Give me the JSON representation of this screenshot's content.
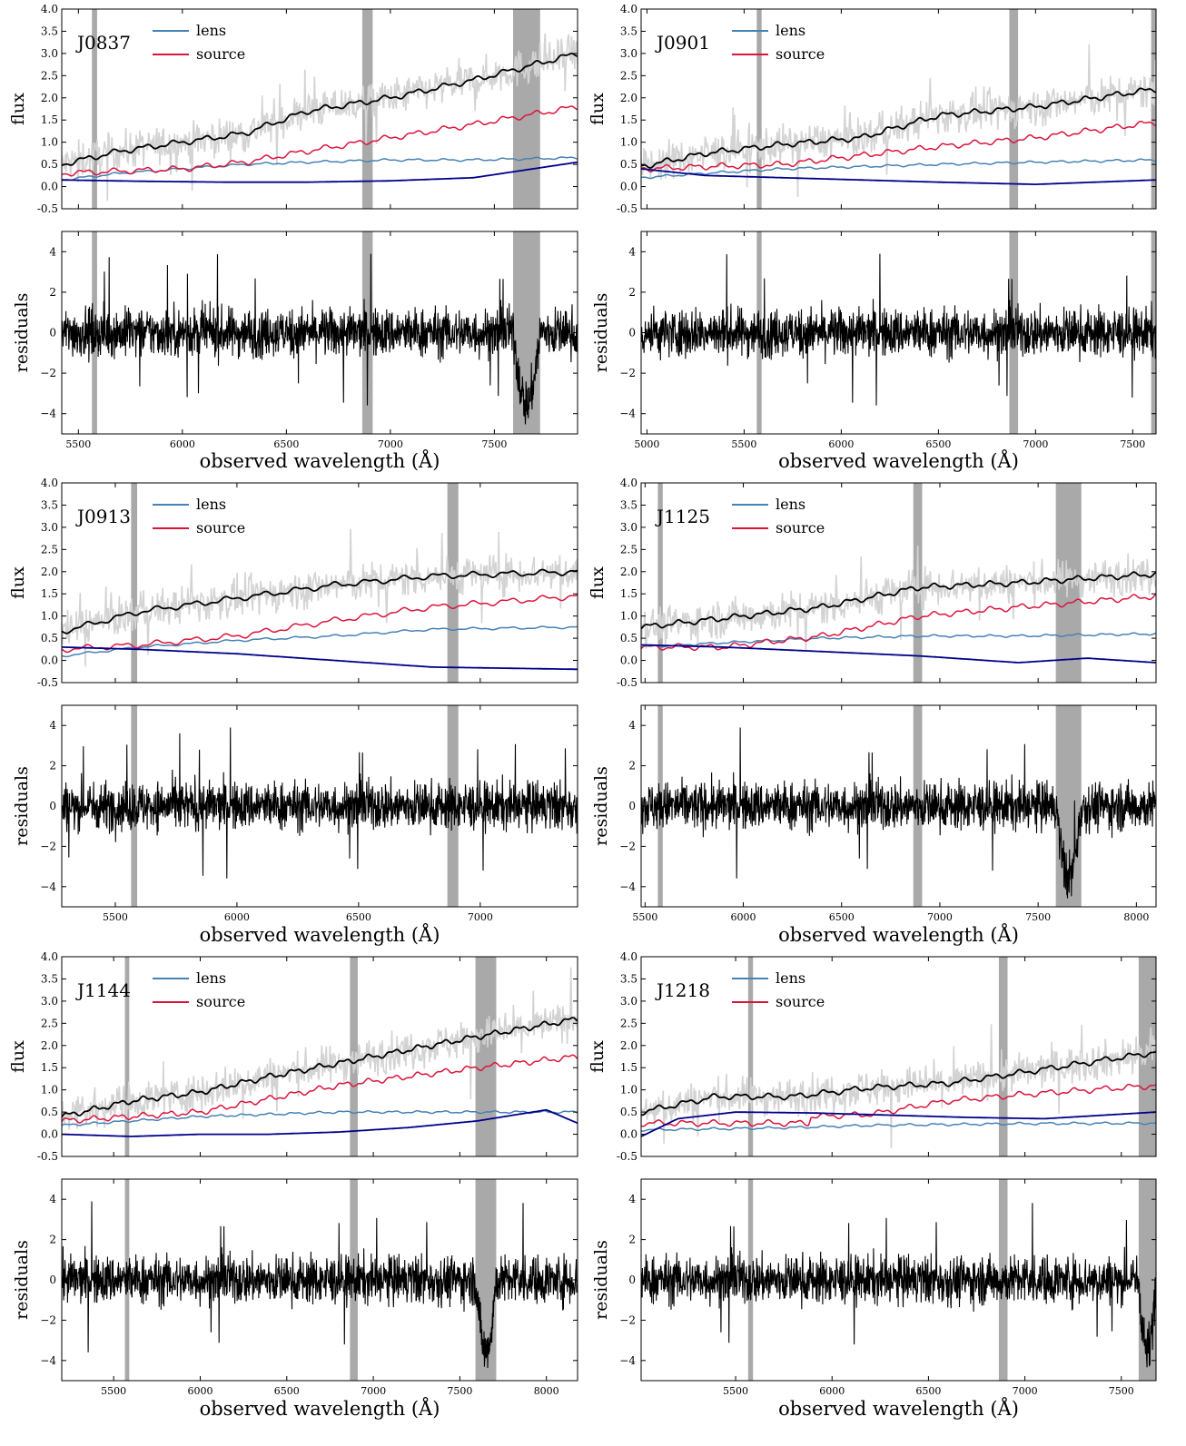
{
  "figure": {
    "x_label": "observed wavelength (Å)",
    "flux_label": "flux",
    "residuals_label": "residuals",
    "legend": {
      "lens": "lens",
      "source": "source"
    },
    "colors": {
      "data": "#d3d3d3",
      "model": "#000000",
      "lens": "#4682b4",
      "source": "#dc143c",
      "polynomial": "#00008b",
      "mask": "#a9a9a9",
      "residuals": "#000000"
    }
  },
  "chart_data": [
    {
      "type": "line",
      "name": "J0837",
      "xlim": [
        5420,
        7900
      ],
      "flux_ylim": [
        -0.5,
        4.0
      ],
      "flux_yticks": [
        -0.5,
        0.0,
        0.5,
        1.0,
        1.5,
        2.0,
        2.5,
        3.0,
        3.5,
        4.0
      ],
      "resid_ylim": [
        -5,
        5
      ],
      "resid_yticks": [
        -4,
        -2,
        0,
        2,
        4
      ],
      "xticks": [
        5500,
        6000,
        6500,
        7000,
        7500
      ],
      "masks": [
        [
          5565,
          5590
        ],
        [
          6865,
          6915
        ],
        [
          7590,
          7720
        ]
      ],
      "series": [
        {
          "name": "lens",
          "x": [
            5420,
            5700,
            6000,
            6300,
            6600,
            7000,
            7400,
            7900
          ],
          "y": [
            0.15,
            0.3,
            0.4,
            0.5,
            0.55,
            0.6,
            0.6,
            0.65
          ]
        },
        {
          "name": "source",
          "x": [
            5420,
            5700,
            6000,
            6300,
            6600,
            7000,
            7400,
            7900
          ],
          "y": [
            0.3,
            0.35,
            0.4,
            0.55,
            0.8,
            1.1,
            1.4,
            1.8
          ]
        },
        {
          "name": "model",
          "x": [
            5420,
            5700,
            6000,
            6300,
            6600,
            7000,
            7400,
            7900
          ],
          "y": [
            0.5,
            0.8,
            1.0,
            1.2,
            1.7,
            2.0,
            2.4,
            3.0
          ]
        },
        {
          "name": "polynomial",
          "x": [
            5420,
            5800,
            6200,
            6600,
            7000,
            7400,
            7900
          ],
          "y": [
            0.15,
            0.12,
            0.1,
            0.1,
            0.13,
            0.2,
            0.55
          ]
        }
      ]
    },
    {
      "type": "line",
      "name": "J0901",
      "xlim": [
        4970,
        7620
      ],
      "flux_ylim": [
        -0.5,
        4.0
      ],
      "flux_yticks": [
        -0.5,
        0.0,
        0.5,
        1.0,
        1.5,
        2.0,
        2.5,
        3.0,
        3.5,
        4.0
      ],
      "resid_ylim": [
        -5,
        5
      ],
      "resid_yticks": [
        -4,
        -2,
        0,
        2,
        4
      ],
      "xticks": [
        5000,
        5500,
        6000,
        6500,
        7000,
        7500
      ],
      "masks": [
        [
          5565,
          5590
        ],
        [
          6865,
          6910
        ],
        [
          7595,
          7620
        ]
      ],
      "series": [
        {
          "name": "lens",
          "x": [
            4970,
            5300,
            5700,
            6100,
            6500,
            7000,
            7620
          ],
          "y": [
            0.2,
            0.3,
            0.4,
            0.45,
            0.5,
            0.55,
            0.6
          ]
        },
        {
          "name": "source",
          "x": [
            4970,
            5300,
            5700,
            6100,
            6500,
            7000,
            7620
          ],
          "y": [
            0.4,
            0.45,
            0.5,
            0.7,
            0.9,
            1.1,
            1.45
          ]
        },
        {
          "name": "model",
          "x": [
            4970,
            5300,
            5700,
            6100,
            6500,
            7000,
            7620
          ],
          "y": [
            0.45,
            0.75,
            0.95,
            1.1,
            1.6,
            1.8,
            2.2
          ]
        },
        {
          "name": "polynomial",
          "x": [
            4970,
            5300,
            5700,
            6100,
            6500,
            7000,
            7620
          ],
          "y": [
            0.4,
            0.25,
            0.2,
            0.15,
            0.1,
            0.05,
            0.15
          ]
        }
      ]
    },
    {
      "type": "line",
      "name": "J0913",
      "xlim": [
        5280,
        7400
      ],
      "flux_ylim": [
        -0.5,
        4.0
      ],
      "flux_yticks": [
        -0.5,
        0.0,
        0.5,
        1.0,
        1.5,
        2.0,
        2.5,
        3.0,
        3.5,
        4.0
      ],
      "resid_ylim": [
        -5,
        5
      ],
      "resid_yticks": [
        -4,
        -2,
        0,
        2,
        4
      ],
      "xticks": [
        5500,
        6000,
        6500,
        7000
      ],
      "masks": [
        [
          5565,
          5590
        ],
        [
          6865,
          6910
        ]
      ],
      "series": [
        {
          "name": "lens",
          "x": [
            5280,
            5600,
            6000,
            6400,
            6800,
            7400
          ],
          "y": [
            0.1,
            0.3,
            0.45,
            0.55,
            0.7,
            0.75
          ]
        },
        {
          "name": "source",
          "x": [
            5280,
            5600,
            6000,
            6400,
            6800,
            7400
          ],
          "y": [
            0.25,
            0.35,
            0.55,
            0.9,
            1.2,
            1.45
          ]
        },
        {
          "name": "model",
          "x": [
            5280,
            5600,
            6000,
            6400,
            6800,
            7400
          ],
          "y": [
            0.65,
            1.1,
            1.4,
            1.7,
            1.9,
            2.0
          ]
        },
        {
          "name": "polynomial",
          "x": [
            5280,
            5600,
            6000,
            6400,
            6800,
            7400
          ],
          "y": [
            0.3,
            0.25,
            0.15,
            0.0,
            -0.15,
            -0.2
          ]
        }
      ]
    },
    {
      "type": "line",
      "name": "J1125",
      "xlim": [
        5480,
        8100
      ],
      "flux_ylim": [
        -0.5,
        4.0
      ],
      "flux_yticks": [
        -0.5,
        0.0,
        0.5,
        1.0,
        1.5,
        2.0,
        2.5,
        3.0,
        3.5,
        4.0
      ],
      "resid_ylim": [
        -5,
        5
      ],
      "resid_yticks": [
        -4,
        -2,
        0,
        2,
        4
      ],
      "xticks": [
        5500,
        6000,
        6500,
        7000,
        7500,
        8000
      ],
      "masks": [
        [
          5565,
          5590
        ],
        [
          6865,
          6910
        ],
        [
          7590,
          7720
        ]
      ],
      "series": [
        {
          "name": "lens",
          "x": [
            5480,
            5900,
            6400,
            6900,
            7400,
            8100
          ],
          "y": [
            0.3,
            0.4,
            0.5,
            0.55,
            0.55,
            0.6
          ]
        },
        {
          "name": "source",
          "x": [
            5480,
            5900,
            6400,
            6900,
            7400,
            8100
          ],
          "y": [
            0.3,
            0.3,
            0.55,
            1.0,
            1.2,
            1.45
          ]
        },
        {
          "name": "model",
          "x": [
            5480,
            5900,
            6400,
            6900,
            7400,
            8100
          ],
          "y": [
            0.75,
            0.95,
            1.2,
            1.65,
            1.75,
            1.95
          ]
        },
        {
          "name": "polynomial",
          "x": [
            5480,
            5900,
            6400,
            6900,
            7400,
            7750,
            8100
          ],
          "y": [
            0.35,
            0.3,
            0.2,
            0.1,
            -0.05,
            0.05,
            -0.05
          ]
        }
      ]
    },
    {
      "type": "line",
      "name": "J1144",
      "xlim": [
        5200,
        8180
      ],
      "flux_ylim": [
        -0.5,
        4.0
      ],
      "flux_yticks": [
        -0.5,
        0.0,
        0.5,
        1.0,
        1.5,
        2.0,
        2.5,
        3.0,
        3.5,
        4.0
      ],
      "resid_ylim": [
        -5,
        5
      ],
      "resid_yticks": [
        -4,
        -2,
        0,
        2,
        4
      ],
      "xticks": [
        5500,
        6000,
        6500,
        7000,
        7500,
        8000
      ],
      "masks": [
        [
          5565,
          5590
        ],
        [
          6865,
          6910
        ],
        [
          7590,
          7710
        ]
      ],
      "series": [
        {
          "name": "lens",
          "x": [
            5200,
            5600,
            6000,
            6400,
            6800,
            7200,
            7600,
            8180
          ],
          "y": [
            0.2,
            0.3,
            0.4,
            0.45,
            0.5,
            0.5,
            0.5,
            0.5
          ]
        },
        {
          "name": "source",
          "x": [
            5200,
            5600,
            6000,
            6400,
            6800,
            7200,
            7600,
            8180
          ],
          "y": [
            0.3,
            0.4,
            0.5,
            0.8,
            1.1,
            1.3,
            1.5,
            1.75
          ]
        },
        {
          "name": "model",
          "x": [
            5200,
            5600,
            6000,
            6400,
            6800,
            7200,
            7600,
            8180
          ],
          "y": [
            0.4,
            0.75,
            0.95,
            1.3,
            1.6,
            1.9,
            2.2,
            2.6
          ]
        },
        {
          "name": "polynomial",
          "x": [
            5200,
            5600,
            6000,
            6400,
            6800,
            7200,
            7600,
            8000,
            8180
          ],
          "y": [
            0.0,
            -0.05,
            0.0,
            0.0,
            0.05,
            0.15,
            0.3,
            0.55,
            0.25
          ]
        }
      ]
    },
    {
      "type": "line",
      "name": "J1218",
      "xlim": [
        5010,
        7680
      ],
      "flux_ylim": [
        -0.5,
        4.0
      ],
      "flux_yticks": [
        -0.5,
        0.0,
        0.5,
        1.0,
        1.5,
        2.0,
        2.5,
        3.0,
        3.5,
        4.0
      ],
      "resid_ylim": [
        -5,
        5
      ],
      "resid_yticks": [
        -4,
        -2,
        0,
        2,
        4
      ],
      "xticks": [
        5500,
        6000,
        6500,
        7000,
        7500
      ],
      "masks": [
        [
          5565,
          5590
        ],
        [
          6865,
          6910
        ],
        [
          7590,
          7680
        ]
      ],
      "series": [
        {
          "name": "lens",
          "x": [
            5010,
            5400,
            5800,
            6200,
            6600,
            7000,
            7680
          ],
          "y": [
            0.1,
            0.12,
            0.15,
            0.2,
            0.22,
            0.24,
            0.25
          ]
        },
        {
          "name": "source",
          "x": [
            5010,
            5400,
            5880,
            5890,
            6200,
            6600,
            7000,
            7680
          ],
          "y": [
            0.25,
            0.25,
            0.25,
            0.4,
            0.45,
            0.75,
            0.9,
            1.1
          ]
        },
        {
          "name": "model",
          "x": [
            5010,
            5400,
            5800,
            6200,
            6600,
            7000,
            7680
          ],
          "y": [
            0.5,
            0.85,
            0.85,
            1.05,
            1.15,
            1.4,
            1.85
          ]
        },
        {
          "name": "polynomial",
          "x": [
            5010,
            5200,
            5500,
            5900,
            6300,
            6700,
            7100,
            7680
          ],
          "y": [
            -0.05,
            0.35,
            0.5,
            0.48,
            0.43,
            0.38,
            0.35,
            0.5
          ]
        }
      ]
    }
  ]
}
